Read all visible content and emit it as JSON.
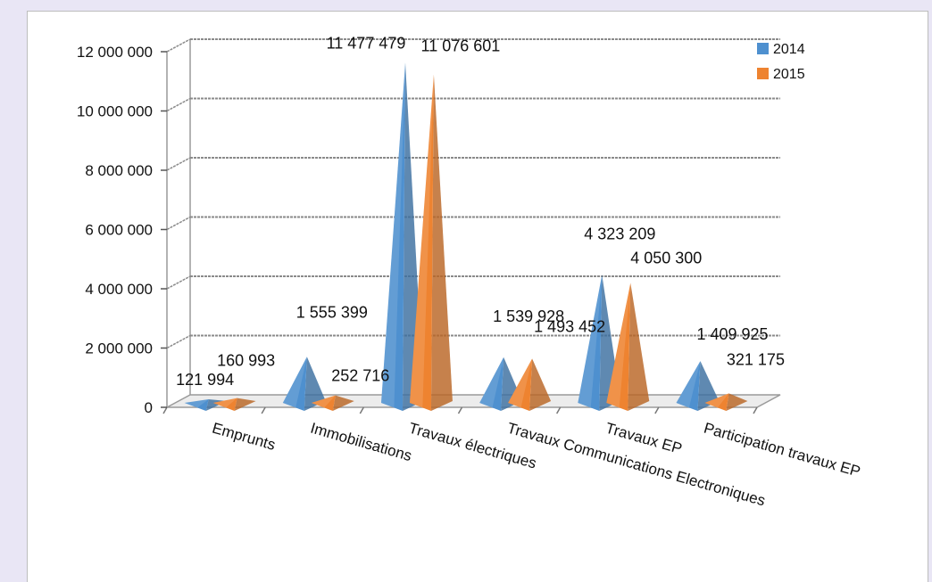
{
  "chart_data": {
    "type": "bar",
    "style": "3d-pyramid",
    "categories": [
      "Emprunts",
      "Immobilisations",
      "Travaux électriques",
      "Travaux Communications Electroniques",
      "Travaux EP",
      "Participation travaux EP"
    ],
    "series": [
      {
        "name": "2014",
        "color": "#4e90cf",
        "values": [
          121994,
          1555399,
          11477479,
          1539928,
          4323209,
          1409925
        ],
        "labels": [
          "121 994",
          "1 555 399",
          "11 477 479",
          "1 539 928",
          "4 323 209",
          "1 409 925"
        ]
      },
      {
        "name": "2015",
        "color": "#ee8330",
        "values": [
          160993,
          252716,
          11076601,
          1493452,
          4050300,
          321175
        ],
        "labels": [
          "160 993",
          "252 716",
          "11 076 601",
          "1 493 452",
          "4 050 300",
          "321 175"
        ]
      }
    ],
    "y_ticks": [
      0,
      2000000,
      4000000,
      6000000,
      8000000,
      10000000,
      12000000
    ],
    "y_tick_labels": [
      "0",
      "2 000 000",
      "4 000 000",
      "6 000 000",
      "8 000 000",
      "10 000 000",
      "12 000 000"
    ],
    "ylim": [
      0,
      12000000
    ],
    "grid": true,
    "legend_position": "top-right"
  }
}
